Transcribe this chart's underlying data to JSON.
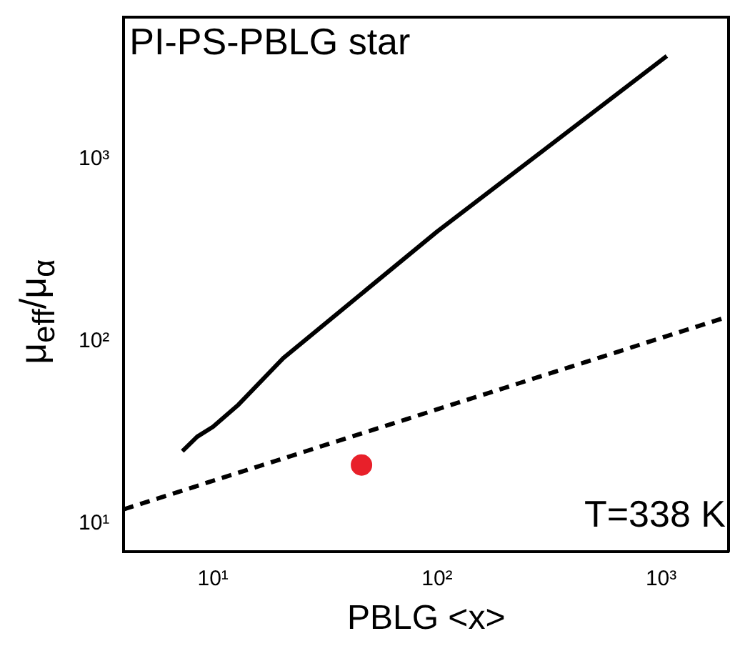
{
  "chart_data": {
    "type": "line",
    "xlabel": "PBLG <x>",
    "ylabel": "μ$_{eff}$/μ$_{α}$",
    "log": "xy",
    "grid": false,
    "legend": false,
    "xlim": [
      4,
      2000
    ],
    "xticks": [
      {
        "value": 10,
        "label": "10¹"
      },
      {
        "value": 100,
        "label": "10²"
      },
      {
        "value": 1000,
        "label": "10³"
      }
    ],
    "ylim": [
      7,
      6000
    ],
    "yticks": [
      {
        "value": 10,
        "label": "10¹"
      },
      {
        "value": 100,
        "label": "10²"
      },
      {
        "value": 1000,
        "label": "10³"
      }
    ],
    "annotations": [
      "PI-PS-PBLG star",
      "T=338 K"
    ],
    "series": [
      {
        "color": "#000000",
        "line_style": "solid",
        "marker": "none",
        "x": [
          7.3,
          8.5,
          10,
          13,
          20.6,
          100,
          1060
        ],
        "values": [
          25,
          30,
          34,
          45,
          81,
          400,
          3670
        ]
      },
      {
        "color": "#000000",
        "line_style": "dashed",
        "marker": "none",
        "x": [
          4,
          2000
        ],
        "values": [
          12,
          137
        ]
      },
      {
        "type": "scatter",
        "color": "#e8202a",
        "marker": "circle",
        "x": [
          46
        ],
        "values": [
          21
        ]
      }
    ]
  }
}
